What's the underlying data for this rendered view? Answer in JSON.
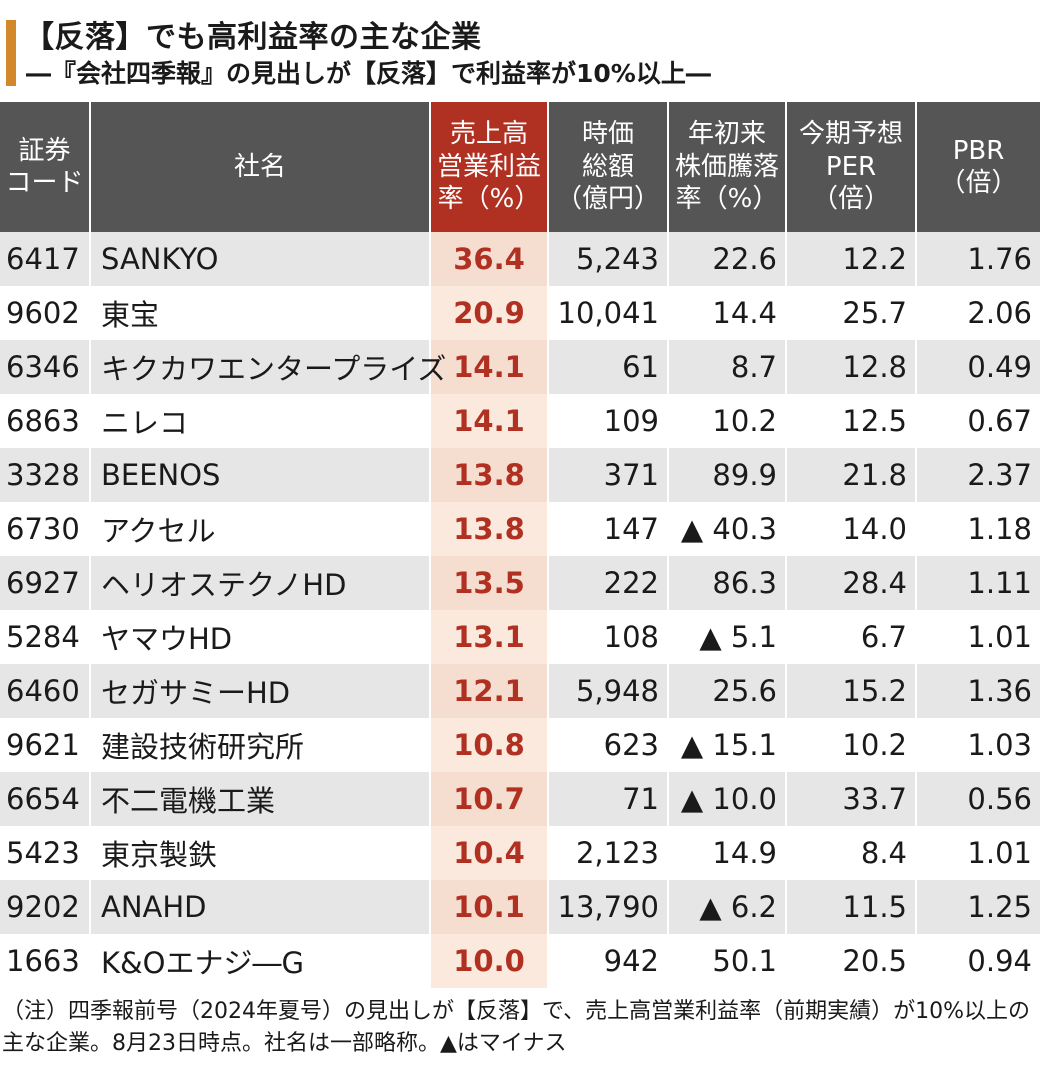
{
  "title": "【反落】でも高利益率の主な企業",
  "subtitle": "―『会社四季報』の見出しが【反落】で利益率が10%以上―",
  "table": {
    "headers": [
      "証券\nコード",
      "社名",
      "売上高\n営業利益\n率（%）",
      "時価\n総額\n（億円）",
      "年初来\n株価騰落\n率（%）",
      "今期予想\nPER\n（倍）",
      "PBR\n（倍）"
    ],
    "rows": [
      [
        "6417",
        "SANKYO",
        "36.4",
        "5,243",
        "22.6",
        "12.2",
        "1.76"
      ],
      [
        "9602",
        "東宝",
        "20.9",
        "10,041",
        "14.4",
        "25.7",
        "2.06"
      ],
      [
        "6346",
        "キクカワエンタープライズ",
        "14.1",
        "61",
        "8.7",
        "12.8",
        "0.49"
      ],
      [
        "6863",
        "ニレコ",
        "14.1",
        "109",
        "10.2",
        "12.5",
        "0.67"
      ],
      [
        "3328",
        "BEENOS",
        "13.8",
        "371",
        "89.9",
        "21.8",
        "2.37"
      ],
      [
        "6730",
        "アクセル",
        "13.8",
        "147",
        "▲ 40.3",
        "14.0",
        "1.18"
      ],
      [
        "6927",
        "ヘリオステクノHD",
        "13.5",
        "222",
        "86.3",
        "28.4",
        "1.11"
      ],
      [
        "5284",
        "ヤマウHD",
        "13.1",
        "108",
        "▲ 5.1",
        "6.7",
        "1.01"
      ],
      [
        "6460",
        "セガサミーHD",
        "12.1",
        "5,948",
        "25.6",
        "15.2",
        "1.36"
      ],
      [
        "9621",
        "建設技術研究所",
        "10.8",
        "623",
        "▲ 15.1",
        "10.2",
        "1.03"
      ],
      [
        "6654",
        "不二電機工業",
        "10.7",
        "71",
        "▲ 10.0",
        "33.7",
        "0.56"
      ],
      [
        "5423",
        "東京製鉄",
        "10.4",
        "2,123",
        "14.9",
        "8.4",
        "1.01"
      ],
      [
        "9202",
        "ANAHD",
        "10.1",
        "13,790",
        "▲ 6.2",
        "11.5",
        "1.25"
      ],
      [
        "1663",
        "K&Oエナジ―G",
        "10.0",
        "942",
        "50.1",
        "20.5",
        "0.94"
      ]
    ]
  },
  "note": "（注）四季報前号（2024年夏号）の見出しが【反落】で、売上高営業利益率（前期実績）が10%以上の主な企業。8月23日時点。社名は一部略称。▲はマイナス",
  "colors": {
    "accent_bar": "#d4882c",
    "header_bg": "#555555",
    "highlight_header_bg": "#b03022",
    "highlight_text": "#b03022",
    "highlight_column_bg": "#fbe9dd",
    "row_shade": "#e6e6e6"
  }
}
